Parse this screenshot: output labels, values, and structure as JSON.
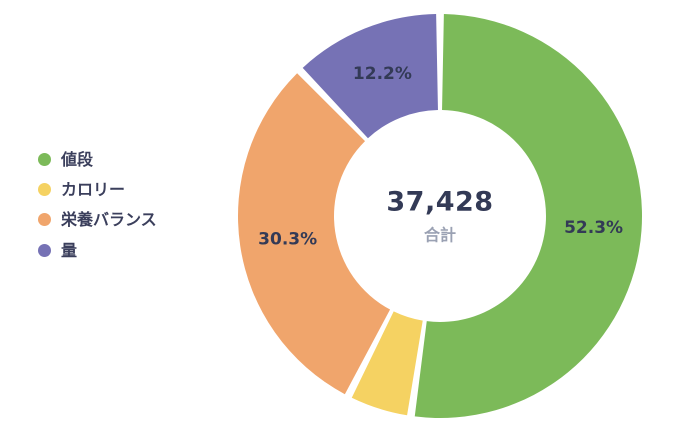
{
  "chart_data": {
    "type": "pie",
    "subtype": "donut",
    "title": "",
    "legend_position": "left",
    "background": "#ffffff",
    "center": {
      "value": "37,428",
      "label": "合計"
    },
    "label_color": "#333a56",
    "series": [
      {
        "name": "値段",
        "value": 52.3,
        "color": "#7cba59",
        "label": "52.3%",
        "label_visible": true
      },
      {
        "name": "カロリー",
        "value": 5.2,
        "color": "#f5d262",
        "label": "5.2%",
        "label_visible": false
      },
      {
        "name": "栄養バランス",
        "value": 30.3,
        "color": "#f0a56c",
        "label": "30.3%",
        "label_visible": true
      },
      {
        "name": "量",
        "value": 12.2,
        "color": "#7672b5",
        "label": "12.2%",
        "label_visible": true
      }
    ],
    "value_range": [
      0,
      100
    ],
    "start_angle_deg": 0,
    "direction": "clockwise",
    "gap_between_slices": true
  }
}
